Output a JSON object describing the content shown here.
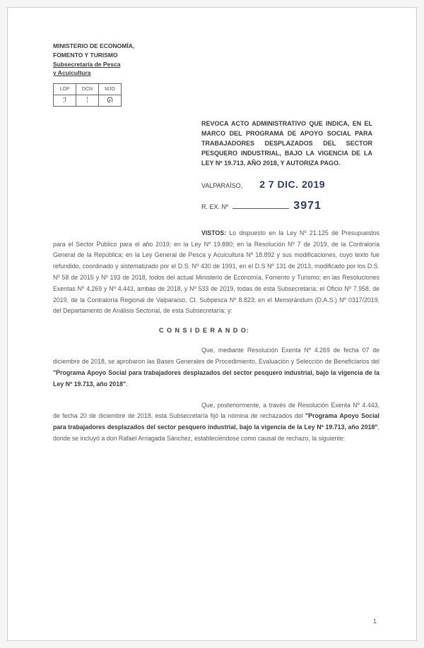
{
  "ministry": {
    "line1": "MINISTERIO DE ECONOMÍA,",
    "line2": "FOMENTO Y TURISMO",
    "line3": "Subsecretaría de Pesca",
    "line4": "y Acuicultura"
  },
  "stamp": {
    "h1": "LOP",
    "h2": "DCN",
    "h3": "MJO"
  },
  "title": "REVOCA ACTO ADMINISTRATIVO QUE INDICA, EN EL MARCO DEL PROGRAMA DE APOYO SOCIAL PARA TRABAJADORES DESPLAZADOS DEL SECTOR PESQUERO INDUSTRIAL, BAJO LA VIGENCIA DE LA LEY Nº 19.713, AÑO 2018, Y AUTORIZA PAGO.",
  "location": "VALPARAÍSO,",
  "date": "2 7 DIC. 2019",
  "rex_label": "R. EX. Nº",
  "rex_num": "3971",
  "vistos_lead": "VISTOS:",
  "vistos_body": " Lo dispuesto en la Ley Nº 21.125 de Presupuestos para el Sector Público para el año 2019; en la Ley Nº 19.880; en la Resolución Nº 7 de 2019, de la Contraloría General de la República; en la Ley General de Pesca y Acuicultura Nº 18.892 y sus modificaciones, cuyo texto fue refundido, coordinado y sistematizado por el D.S. Nº 430 de 1991, en el D.S Nº 131 de 2013, modificado por los D.S. Nº 58 de 2015 y Nº 193 de 2018, todos del actual Ministerio de Economía, Fomento y Turismo; en las Resoluciones Exentas Nº 4.269 y Nº 4.443, ambas de 2018, y Nº 533 de 2019, todas de esta Subsecretaría; el Oficio Nº 7.958, de 2019, de la Contraloría Regional de Valparaíso, CI. Subpesca Nº 8.823; en el Memorándum (D.A.S.) Nº 0317/2019, del Departamento de Análisis Sectorial, de esta Subsecretaría; y:",
  "considerando_heading": "C O N S I D E R A N D O:",
  "para1_lead": "Que, mediante Resolución Exenta Nº 4.269 de ",
  "para1_body_a": "fecha 07 de diciembre de 2018, se aprobaron las Bases Generales de Procedimiento, Evaluación y Selección de Beneficiarios del ",
  "para1_bold": "\"Programa Apoyo Social para trabajadores desplazados del sector pesquero industrial, bajo la vigencia de la Ley Nº 19.713, año 2018\"",
  "para1_end": ".",
  "para2_lead": "Que, posteriormente, a través de Resolución ",
  "para2_body_a": "Exenta Nº 4.443, de fecha 20 de diciembre de 2018, esta Subsecretaría fijó la nómina de rechazados del ",
  "para2_bold": "\"Programa Apoyo Social para trabajadores desplazados del sector pesquero industrial, bajo la vigencia de la Ley Nº 19.713, año 2018\"",
  "para2_body_b": ", donde se incluyó a don Rafael Arriagada Sánchez, estableciéndose como causal de rechazo, la siguiente:",
  "page_number": "1"
}
